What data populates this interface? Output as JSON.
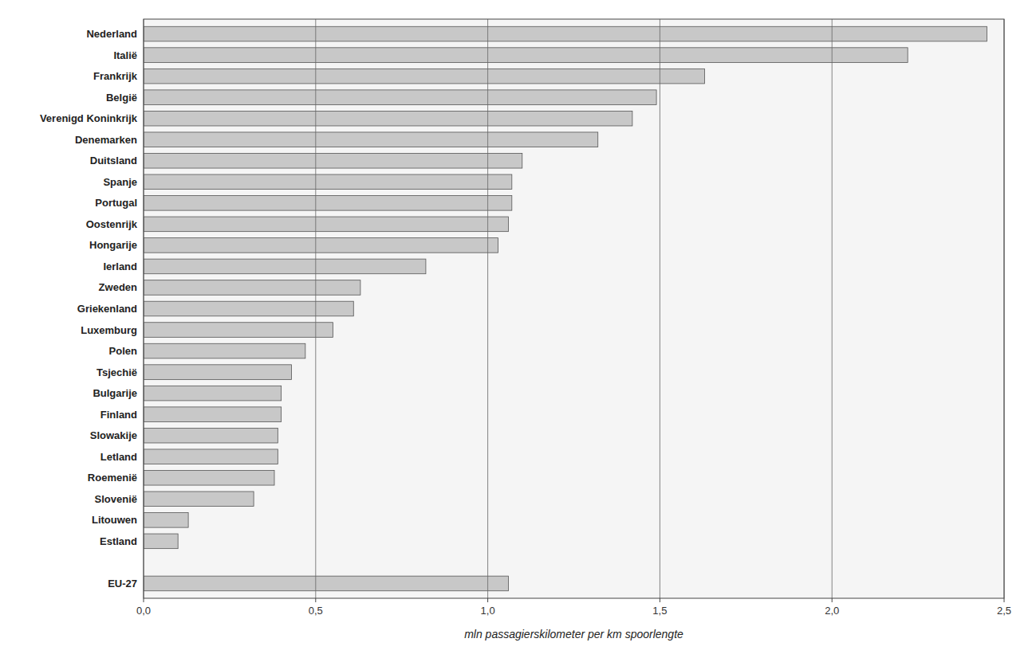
{
  "chart_data": {
    "type": "bar",
    "orientation": "horizontal",
    "categories": [
      "Nederland",
      "Italië",
      "Frankrijk",
      "België",
      "Verenigd Koninkrijk",
      "Denemarken",
      "Duitsland",
      "Spanje",
      "Portugal",
      "Oostenrijk",
      "Hongarije",
      "Ierland",
      "Zweden",
      "Griekenland",
      "Luxemburg",
      "Polen",
      "Tsjechië",
      "Bulgarije",
      "Finland",
      "Slowakije",
      "Letland",
      "Roemenië",
      "Slovenië",
      "Litouwen",
      "Estland",
      null,
      "EU-27"
    ],
    "values": [
      2.45,
      2.22,
      1.63,
      1.49,
      1.42,
      1.32,
      1.1,
      1.07,
      1.07,
      1.06,
      1.03,
      0.82,
      0.63,
      0.61,
      0.55,
      0.47,
      0.43,
      0.4,
      0.4,
      0.39,
      0.39,
      0.38,
      0.32,
      0.13,
      0.1,
      null,
      1.06
    ],
    "color": "#c8c8c8",
    "xlabel": "mln passagierskilometer per km spoorlengte",
    "xlim": [
      0,
      2.5
    ],
    "xticks": [
      {
        "value": 0.0,
        "label": "0,0"
      },
      {
        "value": 0.5,
        "label": "0,5"
      },
      {
        "value": 1.0,
        "label": "1,0"
      },
      {
        "value": 1.5,
        "label": "1,5"
      },
      {
        "value": 2.0,
        "label": "2,0"
      },
      {
        "value": 2.5,
        "label": "2,5"
      }
    ],
    "grid": true
  }
}
